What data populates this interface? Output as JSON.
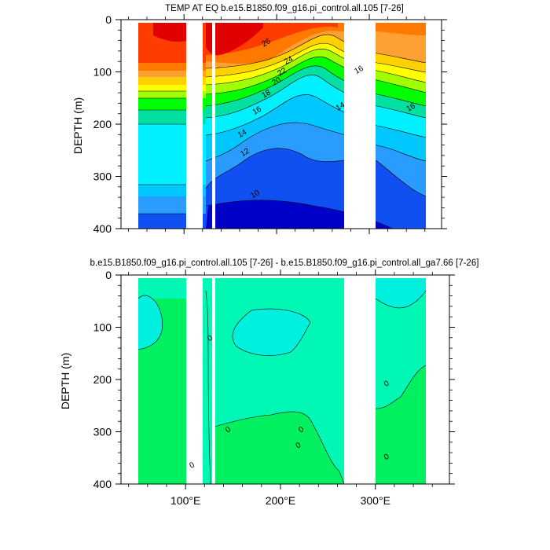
{
  "chart_data": [
    {
      "type": "heatmap",
      "title": "TEMP AT EQ b.e15.B1850.f09_g16.pi_control.all.105 [7-26]",
      "xlabel": "",
      "ylabel": "DEPTH (m)",
      "xlim": [
        32,
        378
      ],
      "ylim": [
        400,
        0
      ],
      "y_ticks": [
        0,
        100,
        200,
        300,
        400
      ],
      "x_ticks": [
        100,
        200,
        300
      ],
      "x_tick_labels": [
        "",
        "",
        ""
      ],
      "land_gaps": [
        [
          98,
          112
        ],
        [
          121,
          130
        ],
        [
          276,
          312
        ],
        [
          368,
          378
        ]
      ],
      "contour_labels": [
        {
          "text": "26",
          "lon": 190,
          "depth": 48
        },
        {
          "text": "24",
          "lon": 214,
          "depth": 82
        },
        {
          "text": "22",
          "lon": 207,
          "depth": 104
        },
        {
          "text": "20",
          "lon": 201,
          "depth": 122
        },
        {
          "text": "18",
          "lon": 190,
          "depth": 146
        },
        {
          "text": "16",
          "lon": 180,
          "depth": 178
        },
        {
          "text": "14",
          "lon": 164,
          "depth": 222
        },
        {
          "text": "12",
          "lon": 167,
          "depth": 258
        },
        {
          "text": "10",
          "lon": 178,
          "depth": 338
        },
        {
          "text": "14",
          "lon": 270,
          "depth": 170
        },
        {
          "text": "16",
          "lon": 290,
          "depth": 100
        },
        {
          "text": "16",
          "lon": 346,
          "depth": 172
        }
      ],
      "color_levels": [
        "#0000c8",
        "#1050f0",
        "#2a9cff",
        "#00c8ff",
        "#00f0ff",
        "#00e0a0",
        "#00ff00",
        "#a0ff00",
        "#ffff00",
        "#ffd000",
        "#ffa032",
        "#ff7800",
        "#ff3c00",
        "#e00000"
      ]
    },
    {
      "type": "heatmap",
      "title": "b.e15.B1850.f09_g16.pi_control.all.105 [7-26] - b.e15.B1850.f09_g16.pi_control.all_ga7.66 [7-26]",
      "xlabel": "",
      "ylabel": "DEPTH (m)",
      "xlim": [
        32,
        378
      ],
      "ylim": [
        400,
        0
      ],
      "y_ticks": [
        0,
        100,
        200,
        300,
        400
      ],
      "x_ticks": [
        100,
        200,
        300
      ],
      "x_tick_labels": [
        "100°E",
        "200°E",
        "300°E"
      ],
      "land_gaps": [
        [
          98,
          112
        ],
        [
          121,
          130
        ],
        [
          276,
          312
        ],
        [
          368,
          378
        ]
      ],
      "contour_labels": [
        {
          "text": "0",
          "lon": 127,
          "depth": 125
        },
        {
          "text": "0",
          "lon": 146,
          "depth": 300
        },
        {
          "text": "0",
          "lon": 223,
          "depth": 300
        },
        {
          "text": "0",
          "lon": 220,
          "depth": 330
        },
        {
          "text": "0",
          "lon": 313,
          "depth": 212
        },
        {
          "text": "0",
          "lon": 313,
          "depth": 352
        },
        {
          "text": "0",
          "lon": 108,
          "depth": 368
        }
      ],
      "color_levels": [
        "#00f0e0",
        "#00f8b4",
        "#00f060"
      ]
    }
  ]
}
